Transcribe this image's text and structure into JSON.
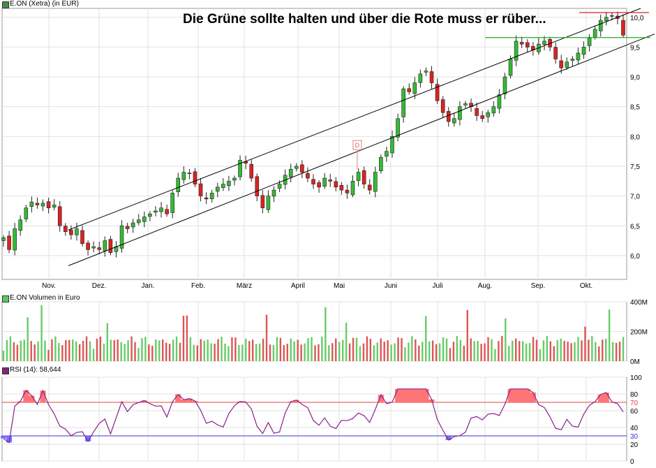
{
  "chart_data": [
    {
      "type": "candlestick",
      "title": "E.ON (Xetra) (in EUR)",
      "annotation": "Die Grüne sollte halten und über die Rote muss er rüber...",
      "x_labels": [
        "Nov.",
        "Dez.",
        "Jan.",
        "Feb.",
        "März",
        "April",
        "Mai",
        "Juni",
        "Juli",
        "Aug.",
        "Sep.",
        "Okt."
      ],
      "y_ticks": [
        "6,0",
        "6,5",
        "7,0",
        "7,5",
        "8,0",
        "8,5",
        "9,0",
        "9,5",
        "10,0"
      ],
      "ylim": [
        5.6,
        10.15
      ],
      "grid": true,
      "up_color": "#33bb33",
      "down_color": "#dd2222",
      "marker": {
        "label": "D",
        "month_index": 6.35,
        "price": 7.85
      },
      "close": [
        6.3,
        6.1,
        6.45,
        6.6,
        6.8,
        6.9,
        6.85,
        6.88,
        6.8,
        6.85,
        6.5,
        6.4,
        6.35,
        6.45,
        6.2,
        6.1,
        6.15,
        6.1,
        6.25,
        6.05,
        6.15,
        6.5,
        6.45,
        6.55,
        6.6,
        6.65,
        6.7,
        6.75,
        6.8,
        6.7,
        7.05,
        7.3,
        7.4,
        7.38,
        7.2,
        7.0,
        6.95,
        7.05,
        7.15,
        7.2,
        7.25,
        7.3,
        7.6,
        7.55,
        7.3,
        7.0,
        6.8,
        7.0,
        7.1,
        7.2,
        7.35,
        7.45,
        7.5,
        7.4,
        7.3,
        7.2,
        7.15,
        7.3,
        7.25,
        7.15,
        7.1,
        7.05,
        7.25,
        7.4,
        7.2,
        7.1,
        7.4,
        7.65,
        7.75,
        8.0,
        8.3,
        8.8,
        8.75,
        8.9,
        9.05,
        9.1,
        8.9,
        8.6,
        8.4,
        8.25,
        8.3,
        8.5,
        8.55,
        8.5,
        8.35,
        8.3,
        8.4,
        8.5,
        8.7,
        9.0,
        9.3,
        9.6,
        9.55,
        9.5,
        9.45,
        9.55,
        9.6,
        9.5,
        9.3,
        9.15,
        9.25,
        9.3,
        9.4,
        9.5,
        9.65,
        9.8,
        9.95,
        10.0,
        10.02,
        9.98,
        9.7
      ],
      "x_domain": "Oct (prev. year) to Oct",
      "volume_panel": {
        "title": "E.ON Volumen in Euro",
        "y_ticks": [
          "0M",
          "200M",
          "400M"
        ],
        "ylim": [
          0,
          400
        ],
        "unit": "M EUR"
      },
      "rsi_panel": {
        "title": "RSI (14): 58,644",
        "y_ticks": [
          "0",
          "20",
          "30",
          "40",
          "60",
          "70",
          "80",
          "100"
        ],
        "ylim": [
          0,
          100
        ],
        "overbought": 70,
        "oversold": 30,
        "current": 58.644,
        "line_color": "#882288",
        "overbought_color": "#dd4444",
        "oversold_color": "#3333dd"
      }
    }
  ]
}
